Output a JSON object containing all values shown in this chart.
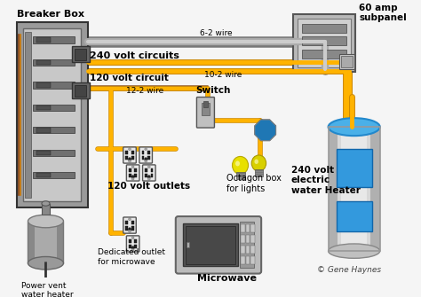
{
  "background_color": "#f5f5f5",
  "copyright": "© Gene Haynes",
  "labels": {
    "breaker_box": "Breaker Box",
    "subpanel": "60 amp\nsubpanel",
    "wire_6_2": "6-2 wire",
    "wire_10_2": "10-2 wire",
    "wire_12_2": "12-2 wire",
    "v240_circuits": "240 volt circuits",
    "v120_circuit": "120 volt circuit",
    "v120_outlets": "120 volt outlets",
    "switch_label": "Switch",
    "octagon_box": "Octagon box\nfor lights",
    "water_heater": "240 volt\nelectric\nwater Heater",
    "power_vent": "Power vent\nwater heater",
    "dedicated_outlet": "Dedicated outlet\nfor microwave",
    "microwave": "Microwave"
  },
  "colors": {
    "wire_gray": "#888888",
    "wire_gray_light": "#bbbbbb",
    "wire_yellow": "#FFB300",
    "wire_yellow_dark": "#cc8800",
    "wire_brown": "#8B4513",
    "breaker_fill": "#c0c0c0",
    "breaker_border": "#555555",
    "breaker_inner": "#a0a0a0",
    "breaker_dark": "#707070",
    "subpanel_fill": "#d0d0d0",
    "outlet_fill": "#e0e0e0",
    "outlet_dark": "#333333",
    "switch_fill": "#c8c8c8",
    "octagon_fill": "#c8c8c8",
    "light_bulb": "#f0e040",
    "light_bulb2": "#d8d000",
    "water_body": "#d8d8d8",
    "water_top": "#4ab0e8",
    "water_blue": "#3399dd",
    "microwave_fill": "#b8b8b8",
    "microwave_screen": "#555555",
    "power_vent_fill": "#aaaaaa",
    "text_color": "#000000",
    "copyright_color": "#444444"
  },
  "figsize": [
    4.74,
    3.35
  ],
  "dpi": 100
}
